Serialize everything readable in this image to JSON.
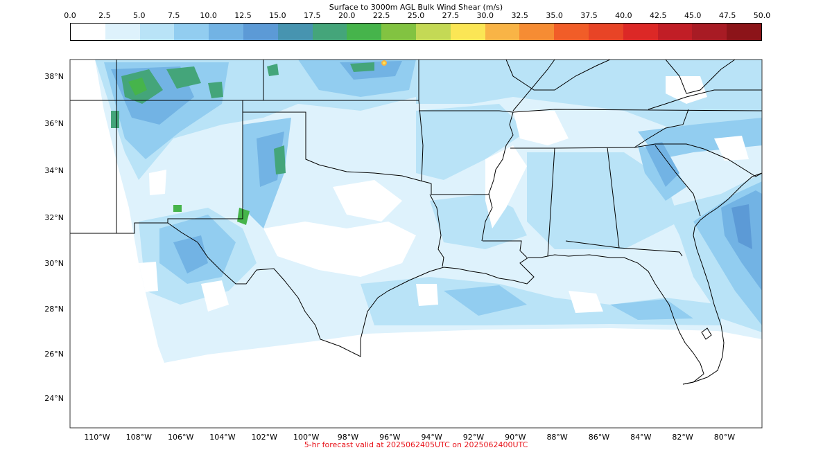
{
  "title": "Surface to 3000m AGL Bulk Wind Shear (m/s)",
  "footer": "5-hr forecast valid at 2025062405UTC on 2025062400UTC",
  "colorbar": {
    "ticks": [
      "0.0",
      "2.5",
      "5.0",
      "7.5",
      "10.0",
      "12.5",
      "15.0",
      "17.5",
      "20.0",
      "22.5",
      "25.0",
      "27.5",
      "30.0",
      "32.5",
      "35.0",
      "37.5",
      "40.0",
      "42.5",
      "45.0",
      "47.5",
      "50.0"
    ],
    "colors": [
      "#ffffff",
      "#def2fc",
      "#b9e3f7",
      "#92cdf0",
      "#72b3e4",
      "#5c9ad6",
      "#4794b0",
      "#44a57a",
      "#46b44b",
      "#82c341",
      "#c4d955",
      "#fbe655",
      "#f9b446",
      "#f68c33",
      "#f15d28",
      "#e84426",
      "#dc2826",
      "#c11e26",
      "#a81b24",
      "#8c1419"
    ]
  },
  "map": {
    "lat_labels": [
      "38°N",
      "36°N",
      "34°N",
      "32°N",
      "30°N",
      "28°N",
      "26°N",
      "24°N"
    ],
    "lon_labels": [
      "110°W",
      "108°W",
      "106°W",
      "104°W",
      "102°W",
      "100°W",
      "98°W",
      "96°W",
      "94°W",
      "92°W",
      "90°W",
      "88°W",
      "86°W",
      "84°W",
      "82°W",
      "80°W"
    ]
  }
}
